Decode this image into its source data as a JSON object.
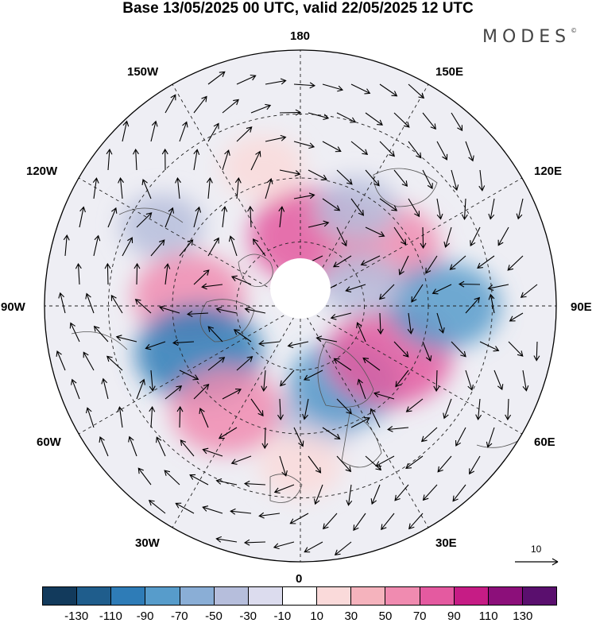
{
  "title": "Base 13/05/2025 00 UTC, valid 22/05/2025 12 UTC",
  "brand": "MODES",
  "brand_mark": "©",
  "longitude_labels": {
    "n180": "180",
    "n150w": "150W",
    "n150e": "150E",
    "n120w": "120W",
    "n120e": "120E",
    "n90w": "90W",
    "n90e": "90E",
    "n60w": "60W",
    "n60e": "60E",
    "n30w": "30W",
    "n30e": "30E",
    "n0": "0"
  },
  "reference_vector": {
    "label": "10"
  },
  "colorbar": {
    "colors": [
      "#123a5c",
      "#1f5d8c",
      "#2e7cb7",
      "#579ccb",
      "#8aaed6",
      "#b6bedc",
      "#dcdcee",
      "#ffffff",
      "#fadada",
      "#f5b3bd",
      "#f08bb0",
      "#e45aa0",
      "#c61c85",
      "#8c0f7a",
      "#5a0f6e"
    ],
    "ticks": [
      "-130",
      "-110",
      "-90",
      "-70",
      "-50",
      "-30",
      "-10",
      "10",
      "30",
      "50",
      "70",
      "90",
      "110",
      "130"
    ]
  },
  "anomaly_centers": [
    {
      "lon": 170,
      "lat": 68,
      "value": 90,
      "color": "#e45aa0"
    },
    {
      "lon": 125,
      "lat": 58,
      "value": 70,
      "color": "#f08bb0"
    },
    {
      "lon": 150,
      "lat": 55,
      "value": -30,
      "color": "#b6bedc"
    },
    {
      "lon": -165,
      "lat": 45,
      "value": 30,
      "color": "#fadada"
    },
    {
      "lon": -120,
      "lat": 40,
      "value": -30,
      "color": "#b6bedc"
    },
    {
      "lon": -95,
      "lat": 55,
      "value": 70,
      "color": "#f08bb0"
    },
    {
      "lon": -65,
      "lat": 55,
      "value": -90,
      "color": "#2e7cb7"
    },
    {
      "lon": -35,
      "lat": 50,
      "value": 70,
      "color": "#f08bb0"
    },
    {
      "lon": 10,
      "lat": 55,
      "value": -30,
      "color": "#b6bedc"
    },
    {
      "lon": 30,
      "lat": 62,
      "value": -70,
      "color": "#579ccb"
    },
    {
      "lon": 60,
      "lat": 58,
      "value": 90,
      "color": "#e45aa0"
    },
    {
      "lon": 90,
      "lat": 45,
      "value": -70,
      "color": "#579ccb"
    },
    {
      "lon": 110,
      "lat": 70,
      "value": -30,
      "color": "#b6bedc"
    },
    {
      "lon": 0,
      "lat": 40,
      "value": 30,
      "color": "#fadada"
    }
  ]
}
